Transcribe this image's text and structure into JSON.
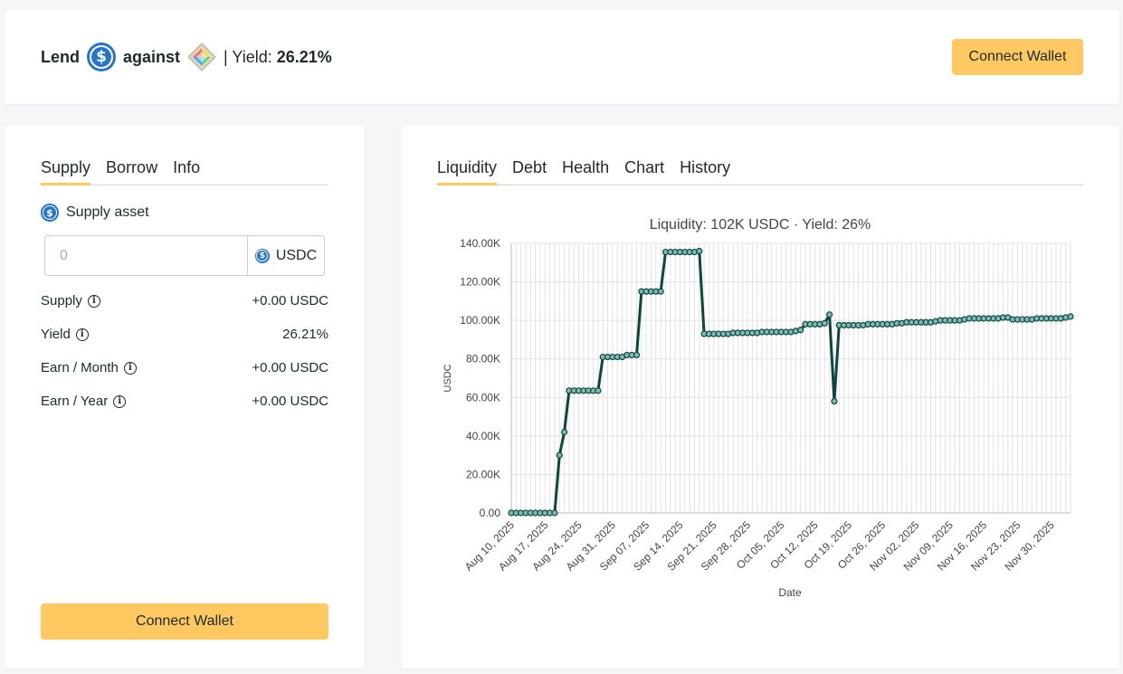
{
  "header": {
    "lend_label": "Lend",
    "against_label": "against",
    "yield_label": "| Yield:",
    "yield_value": "26.21%",
    "lend_asset_icon": "usdc-icon",
    "collateral_icon": "gem-icon",
    "connect_label": "Connect Wallet"
  },
  "left_panel": {
    "tabs": [
      {
        "label": "Supply",
        "active": true
      },
      {
        "label": "Borrow",
        "active": false
      },
      {
        "label": "Info",
        "active": false
      }
    ],
    "supply_asset_label": "Supply asset",
    "amount_placeholder": "0",
    "amount_unit": "USDC",
    "stats": [
      {
        "label": "Supply",
        "value": "+0.00 USDC"
      },
      {
        "label": "Yield",
        "value": "26.21%"
      },
      {
        "label": "Earn / Month",
        "value": "+0.00 USDC"
      },
      {
        "label": "Earn / Year",
        "value": "+0.00 USDC"
      }
    ],
    "connect_label": "Connect Wallet"
  },
  "right_panel": {
    "tabs": [
      {
        "label": "Liquidity",
        "active": true
      },
      {
        "label": "Debt",
        "active": false
      },
      {
        "label": "Health",
        "active": false
      },
      {
        "label": "Chart",
        "active": false
      },
      {
        "label": "History",
        "active": false
      }
    ]
  },
  "colors": {
    "accent": "#ffc861",
    "line": "#0d4540",
    "usdc": "#2775ca"
  },
  "chart_data": {
    "type": "line",
    "title": "Liquidity: 102K USDC · Yield: 26%",
    "xlabel": "Date",
    "ylabel": "USDC",
    "ylim": [
      0,
      140000
    ],
    "y_ticks": [
      0,
      20000,
      40000,
      60000,
      80000,
      100000,
      120000,
      140000
    ],
    "y_tick_labels": [
      "0.00",
      "20.00K",
      "40.00K",
      "60.00K",
      "80.00K",
      "100.00K",
      "120.00K",
      "140.00K"
    ],
    "x_range": [
      "2025-08-10",
      "2025-12-04"
    ],
    "x_tick_labels": [
      "Aug 10, 2025",
      "Aug 17, 2025",
      "Aug 24, 2025",
      "Aug 31, 2025",
      "Sep 07, 2025",
      "Sep 14, 2025",
      "Sep 21, 2025",
      "Sep 28, 2025",
      "Oct 05, 2025",
      "Oct 12, 2025",
      "Oct 19, 2025",
      "Oct 26, 2025",
      "Nov 02, 2025",
      "Nov 09, 2025",
      "Nov 16, 2025",
      "Nov 23, 2025",
      "Nov 30, 2025"
    ],
    "grid": true,
    "series": [
      {
        "points": [
          [
            "2025-08-10",
            0
          ],
          [
            "2025-08-11",
            0
          ],
          [
            "2025-08-12",
            0
          ],
          [
            "2025-08-13",
            0
          ],
          [
            "2025-08-14",
            0
          ],
          [
            "2025-08-15",
            0
          ],
          [
            "2025-08-16",
            0
          ],
          [
            "2025-08-17",
            0
          ],
          [
            "2025-08-18",
            0
          ],
          [
            "2025-08-19",
            0
          ],
          [
            "2025-08-20",
            30000
          ],
          [
            "2025-08-21",
            42000
          ],
          [
            "2025-08-22",
            63500
          ],
          [
            "2025-08-23",
            63500
          ],
          [
            "2025-08-24",
            63500
          ],
          [
            "2025-08-25",
            63500
          ],
          [
            "2025-08-26",
            63500
          ],
          [
            "2025-08-27",
            63500
          ],
          [
            "2025-08-28",
            63500
          ],
          [
            "2025-08-29",
            81000
          ],
          [
            "2025-08-30",
            81000
          ],
          [
            "2025-08-31",
            81000
          ],
          [
            "2025-09-01",
            81000
          ],
          [
            "2025-09-02",
            81000
          ],
          [
            "2025-09-03",
            82000
          ],
          [
            "2025-09-04",
            82000
          ],
          [
            "2025-09-05",
            82000
          ],
          [
            "2025-09-06",
            115000
          ],
          [
            "2025-09-07",
            115000
          ],
          [
            "2025-09-08",
            115000
          ],
          [
            "2025-09-09",
            115000
          ],
          [
            "2025-09-10",
            115000
          ],
          [
            "2025-09-11",
            135500
          ],
          [
            "2025-09-12",
            135500
          ],
          [
            "2025-09-13",
            135500
          ],
          [
            "2025-09-14",
            135500
          ],
          [
            "2025-09-15",
            135500
          ],
          [
            "2025-09-16",
            135500
          ],
          [
            "2025-09-17",
            135500
          ],
          [
            "2025-09-18",
            136000
          ],
          [
            "2025-09-19",
            93000
          ],
          [
            "2025-09-20",
            93000
          ],
          [
            "2025-09-21",
            93000
          ],
          [
            "2025-09-22",
            93000
          ],
          [
            "2025-09-23",
            93000
          ],
          [
            "2025-09-24",
            93000
          ],
          [
            "2025-09-25",
            93500
          ],
          [
            "2025-09-26",
            93500
          ],
          [
            "2025-09-27",
            93500
          ],
          [
            "2025-09-28",
            93500
          ],
          [
            "2025-09-29",
            93500
          ],
          [
            "2025-09-30",
            93500
          ],
          [
            "2025-10-01",
            94000
          ],
          [
            "2025-10-02",
            94000
          ],
          [
            "2025-10-03",
            94000
          ],
          [
            "2025-10-04",
            94000
          ],
          [
            "2025-10-05",
            94000
          ],
          [
            "2025-10-06",
            94000
          ],
          [
            "2025-10-07",
            94000
          ],
          [
            "2025-10-08",
            94500
          ],
          [
            "2025-10-09",
            95000
          ],
          [
            "2025-10-10",
            98000
          ],
          [
            "2025-10-11",
            98000
          ],
          [
            "2025-10-12",
            98000
          ],
          [
            "2025-10-13",
            98000
          ],
          [
            "2025-10-14",
            98500
          ],
          [
            "2025-10-15",
            103000
          ],
          [
            "2025-10-16",
            58000
          ],
          [
            "2025-10-17",
            97500
          ],
          [
            "2025-10-18",
            97500
          ],
          [
            "2025-10-19",
            97500
          ],
          [
            "2025-10-20",
            97500
          ],
          [
            "2025-10-21",
            97500
          ],
          [
            "2025-10-22",
            97500
          ],
          [
            "2025-10-23",
            98000
          ],
          [
            "2025-10-24",
            98000
          ],
          [
            "2025-10-25",
            98000
          ],
          [
            "2025-10-26",
            98000
          ],
          [
            "2025-10-27",
            98000
          ],
          [
            "2025-10-28",
            98000
          ],
          [
            "2025-10-29",
            98500
          ],
          [
            "2025-10-30",
            98500
          ],
          [
            "2025-10-31",
            99000
          ],
          [
            "2025-11-01",
            99000
          ],
          [
            "2025-11-02",
            99000
          ],
          [
            "2025-11-03",
            99000
          ],
          [
            "2025-11-04",
            99000
          ],
          [
            "2025-11-05",
            99000
          ],
          [
            "2025-11-06",
            99500
          ],
          [
            "2025-11-07",
            100000
          ],
          [
            "2025-11-08",
            100000
          ],
          [
            "2025-11-09",
            100000
          ],
          [
            "2025-11-10",
            100000
          ],
          [
            "2025-11-11",
            100000
          ],
          [
            "2025-11-12",
            100500
          ],
          [
            "2025-11-13",
            101000
          ],
          [
            "2025-11-14",
            101000
          ],
          [
            "2025-11-15",
            101000
          ],
          [
            "2025-11-16",
            101000
          ],
          [
            "2025-11-17",
            101000
          ],
          [
            "2025-11-18",
            101000
          ],
          [
            "2025-11-19",
            101000
          ],
          [
            "2025-11-20",
            101500
          ],
          [
            "2025-11-21",
            101500
          ],
          [
            "2025-11-22",
            100500
          ],
          [
            "2025-11-23",
            100500
          ],
          [
            "2025-11-24",
            100500
          ],
          [
            "2025-11-25",
            100500
          ],
          [
            "2025-11-26",
            100500
          ],
          [
            "2025-11-27",
            101000
          ],
          [
            "2025-11-28",
            101000
          ],
          [
            "2025-11-29",
            101000
          ],
          [
            "2025-11-30",
            101000
          ],
          [
            "2025-12-01",
            101000
          ],
          [
            "2025-12-02",
            101000
          ],
          [
            "2025-12-03",
            101500
          ],
          [
            "2025-12-04",
            102000
          ]
        ]
      }
    ]
  }
}
